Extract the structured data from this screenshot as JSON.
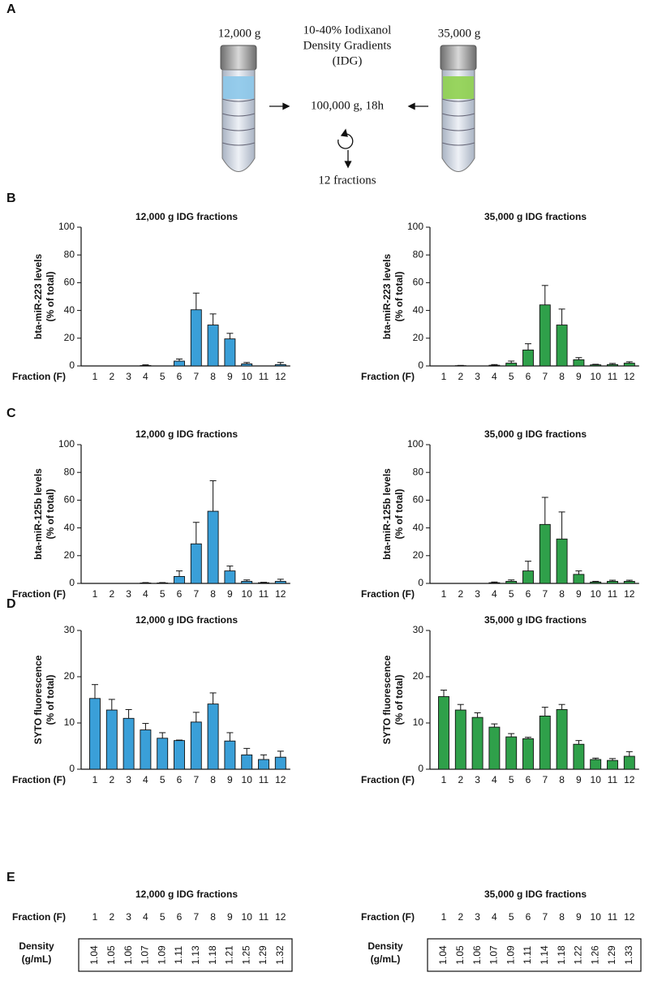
{
  "panel_labels": [
    "A",
    "B",
    "C",
    "D",
    "E"
  ],
  "diagram": {
    "left_speed": "12,000 g",
    "gradient_label": [
      "10-40% Iodixanol",
      "Density Gradients",
      "(IDG)"
    ],
    "right_speed": "35,000 g",
    "spin": "100,000 g, 18h",
    "result": "12 fractions"
  },
  "chart_data": [
    {
      "type": "bar",
      "title": "12,000 g IDG fractions",
      "ylabel": [
        "bta-miR-223 levels",
        "(% of total)"
      ],
      "xlabel": "Fraction (F)",
      "categories": [
        "1",
        "2",
        "3",
        "4",
        "5",
        "6",
        "7",
        "8",
        "9",
        "10",
        "11",
        "12"
      ],
      "values": [
        0,
        0,
        0,
        0.3,
        0,
        3.5,
        40.5,
        29.5,
        19.5,
        1.5,
        0,
        1
      ],
      "errors": [
        0,
        0,
        0,
        0.5,
        0,
        1.5,
        12,
        8,
        4,
        1,
        0,
        1.5
      ],
      "color": "#3a9fd8",
      "ylim": [
        0,
        100
      ],
      "yticks": [
        0,
        20,
        40,
        60,
        80,
        100
      ]
    },
    {
      "type": "bar",
      "title": "35,000 g IDG fractions",
      "ylabel": [
        "bta-miR-223 levels",
        "(% of total)"
      ],
      "xlabel": "Fraction (F)",
      "categories": [
        "1",
        "2",
        "3",
        "4",
        "5",
        "6",
        "7",
        "8",
        "9",
        "10",
        "11",
        "12"
      ],
      "values": [
        0,
        0.2,
        0,
        0.5,
        2,
        11.5,
        44,
        29.5,
        4.5,
        0.8,
        1,
        2
      ],
      "errors": [
        0,
        0.2,
        0,
        0.5,
        1.5,
        4.5,
        14,
        11.5,
        1.5,
        0.4,
        0.8,
        1
      ],
      "color": "#2fa04a",
      "ylim": [
        0,
        100
      ],
      "yticks": [
        0,
        20,
        40,
        60,
        80,
        100
      ]
    },
    {
      "type": "bar",
      "title": "12,000 g IDG fractions",
      "ylabel": [
        "bta-miR-125b levels",
        "(% of total)"
      ],
      "xlabel": "Fraction (F)",
      "categories": [
        "1",
        "2",
        "3",
        "4",
        "5",
        "6",
        "7",
        "8",
        "9",
        "10",
        "11",
        "12"
      ],
      "values": [
        0,
        0,
        0,
        0.3,
        0.3,
        5,
        28.5,
        52,
        9,
        1.5,
        0.5,
        1.5
      ],
      "errors": [
        0,
        0,
        0,
        0.3,
        0.3,
        4,
        15.5,
        22,
        3.5,
        1,
        0.3,
        1.5
      ],
      "color": "#3a9fd8",
      "ylim": [
        0,
        100
      ],
      "yticks": [
        0,
        20,
        40,
        60,
        80,
        100
      ]
    },
    {
      "type": "bar",
      "title": "35,000 g IDG fractions",
      "ylabel": [
        "bta-miR-125b levels",
        "(% of total)"
      ],
      "xlabel": "Fraction (F)",
      "categories": [
        "1",
        "2",
        "3",
        "4",
        "5",
        "6",
        "7",
        "8",
        "9",
        "10",
        "11",
        "12"
      ],
      "values": [
        0,
        0,
        0,
        0.5,
        1.5,
        9,
        42.5,
        32,
        6.5,
        1,
        1.5,
        1.5
      ],
      "errors": [
        0,
        0,
        0,
        0.5,
        1,
        7,
        19.5,
        19.5,
        2.5,
        0.5,
        0.8,
        0.8
      ],
      "color": "#2fa04a",
      "ylim": [
        0,
        100
      ],
      "yticks": [
        0,
        20,
        40,
        60,
        80,
        100
      ]
    },
    {
      "type": "bar",
      "title": "12,000 g IDG fractions",
      "ylabel": [
        "SYTO fluorescence",
        "(% of total)"
      ],
      "xlabel": "Fraction (F)",
      "categories": [
        "1",
        "2",
        "3",
        "4",
        "5",
        "6",
        "7",
        "8",
        "9",
        "10",
        "11",
        "12"
      ],
      "values": [
        15.3,
        12.8,
        11,
        8.5,
        6.7,
        6.2,
        10.2,
        14.1,
        6.1,
        3.1,
        2.1,
        2.6
      ],
      "errors": [
        3,
        2.3,
        1.9,
        1.4,
        1.2,
        0.1,
        2.1,
        2.4,
        1.8,
        1.4,
        1,
        1.3
      ],
      "color": "#3a9fd8",
      "ylim": [
        0,
        30
      ],
      "yticks": [
        0,
        10,
        20,
        30
      ]
    },
    {
      "type": "bar",
      "title": "35,000 g IDG fractions",
      "ylabel": [
        "SYTO fluorescence",
        "(% of total)"
      ],
      "xlabel": "Fraction (F)",
      "categories": [
        "1",
        "2",
        "3",
        "4",
        "5",
        "6",
        "7",
        "8",
        "9",
        "10",
        "11",
        "12"
      ],
      "values": [
        15.7,
        12.8,
        11.2,
        9.1,
        7,
        6.6,
        11.5,
        12.9,
        5.4,
        2.1,
        1.9,
        2.8
      ],
      "errors": [
        1.4,
        1.2,
        1,
        0.7,
        0.7,
        0.3,
        1.9,
        1.1,
        0.8,
        0.3,
        0.4,
        1
      ],
      "color": "#2fa04a",
      "ylim": [
        0,
        30
      ],
      "yticks": [
        0,
        10,
        20,
        30
      ]
    }
  ],
  "tables": [
    {
      "title": "12,000 g IDG fractions",
      "fraction_label": "Fraction (F)",
      "fractions": [
        "1",
        "2",
        "3",
        "4",
        "5",
        "6",
        "7",
        "8",
        "9",
        "10",
        "11",
        "12"
      ],
      "density_label": [
        "Density",
        "(g/mL)"
      ],
      "densities": [
        "1.04",
        "1.05",
        "1.06",
        "1.07",
        "1.09",
        "1.11",
        "1.13",
        "1.18",
        "1.21",
        "1.25",
        "1.29",
        "1.32"
      ]
    },
    {
      "title": "35,000 g IDG fractions",
      "fraction_label": "Fraction (F)",
      "fractions": [
        "1",
        "2",
        "3",
        "4",
        "5",
        "6",
        "7",
        "8",
        "9",
        "10",
        "11",
        "12"
      ],
      "density_label": [
        "Density",
        "(g/mL)"
      ],
      "densities": [
        "1.04",
        "1.05",
        "1.06",
        "1.07",
        "1.09",
        "1.11",
        "1.14",
        "1.18",
        "1.22",
        "1.26",
        "1.29",
        "1.33"
      ]
    }
  ]
}
